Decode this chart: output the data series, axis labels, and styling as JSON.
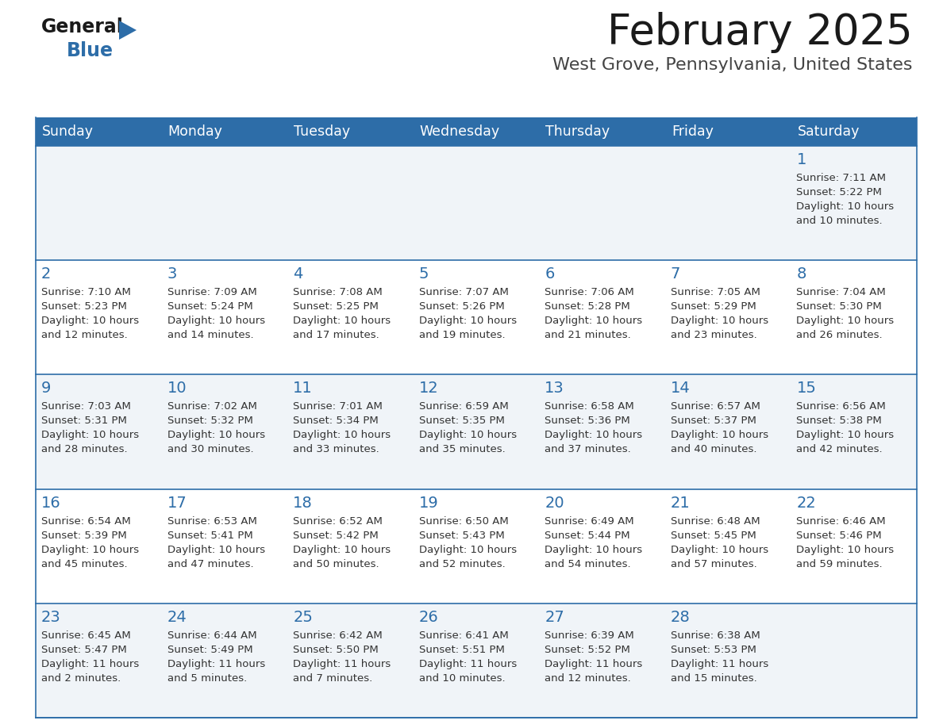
{
  "title": "February 2025",
  "subtitle": "West Grove, Pennsylvania, United States",
  "logo_text_general": "General",
  "logo_text_blue": "Blue",
  "days_of_week": [
    "Sunday",
    "Monday",
    "Tuesday",
    "Wednesday",
    "Thursday",
    "Friday",
    "Saturday"
  ],
  "header_bg": "#2D6DA8",
  "header_text": "#FFFFFF",
  "cell_bg_odd": "#F0F4F8",
  "cell_bg_even": "#FFFFFF",
  "cell_border": "#2D6DA8",
  "day_number_color": "#2D6DA8",
  "text_color": "#333333",
  "calendar_data": [
    [
      null,
      null,
      null,
      null,
      null,
      null,
      {
        "day": 1,
        "sunrise": "7:11 AM",
        "sunset": "5:22 PM",
        "daylight": "10 hours\nand 10 minutes."
      }
    ],
    [
      {
        "day": 2,
        "sunrise": "7:10 AM",
        "sunset": "5:23 PM",
        "daylight": "10 hours\nand 12 minutes."
      },
      {
        "day": 3,
        "sunrise": "7:09 AM",
        "sunset": "5:24 PM",
        "daylight": "10 hours\nand 14 minutes."
      },
      {
        "day": 4,
        "sunrise": "7:08 AM",
        "sunset": "5:25 PM",
        "daylight": "10 hours\nand 17 minutes."
      },
      {
        "day": 5,
        "sunrise": "7:07 AM",
        "sunset": "5:26 PM",
        "daylight": "10 hours\nand 19 minutes."
      },
      {
        "day": 6,
        "sunrise": "7:06 AM",
        "sunset": "5:28 PM",
        "daylight": "10 hours\nand 21 minutes."
      },
      {
        "day": 7,
        "sunrise": "7:05 AM",
        "sunset": "5:29 PM",
        "daylight": "10 hours\nand 23 minutes."
      },
      {
        "day": 8,
        "sunrise": "7:04 AM",
        "sunset": "5:30 PM",
        "daylight": "10 hours\nand 26 minutes."
      }
    ],
    [
      {
        "day": 9,
        "sunrise": "7:03 AM",
        "sunset": "5:31 PM",
        "daylight": "10 hours\nand 28 minutes."
      },
      {
        "day": 10,
        "sunrise": "7:02 AM",
        "sunset": "5:32 PM",
        "daylight": "10 hours\nand 30 minutes."
      },
      {
        "day": 11,
        "sunrise": "7:01 AM",
        "sunset": "5:34 PM",
        "daylight": "10 hours\nand 33 minutes."
      },
      {
        "day": 12,
        "sunrise": "6:59 AM",
        "sunset": "5:35 PM",
        "daylight": "10 hours\nand 35 minutes."
      },
      {
        "day": 13,
        "sunrise": "6:58 AM",
        "sunset": "5:36 PM",
        "daylight": "10 hours\nand 37 minutes."
      },
      {
        "day": 14,
        "sunrise": "6:57 AM",
        "sunset": "5:37 PM",
        "daylight": "10 hours\nand 40 minutes."
      },
      {
        "day": 15,
        "sunrise": "6:56 AM",
        "sunset": "5:38 PM",
        "daylight": "10 hours\nand 42 minutes."
      }
    ],
    [
      {
        "day": 16,
        "sunrise": "6:54 AM",
        "sunset": "5:39 PM",
        "daylight": "10 hours\nand 45 minutes."
      },
      {
        "day": 17,
        "sunrise": "6:53 AM",
        "sunset": "5:41 PM",
        "daylight": "10 hours\nand 47 minutes."
      },
      {
        "day": 18,
        "sunrise": "6:52 AM",
        "sunset": "5:42 PM",
        "daylight": "10 hours\nand 50 minutes."
      },
      {
        "day": 19,
        "sunrise": "6:50 AM",
        "sunset": "5:43 PM",
        "daylight": "10 hours\nand 52 minutes."
      },
      {
        "day": 20,
        "sunrise": "6:49 AM",
        "sunset": "5:44 PM",
        "daylight": "10 hours\nand 54 minutes."
      },
      {
        "day": 21,
        "sunrise": "6:48 AM",
        "sunset": "5:45 PM",
        "daylight": "10 hours\nand 57 minutes."
      },
      {
        "day": 22,
        "sunrise": "6:46 AM",
        "sunset": "5:46 PM",
        "daylight": "10 hours\nand 59 minutes."
      }
    ],
    [
      {
        "day": 23,
        "sunrise": "6:45 AM",
        "sunset": "5:47 PM",
        "daylight": "11 hours\nand 2 minutes."
      },
      {
        "day": 24,
        "sunrise": "6:44 AM",
        "sunset": "5:49 PM",
        "daylight": "11 hours\nand 5 minutes."
      },
      {
        "day": 25,
        "sunrise": "6:42 AM",
        "sunset": "5:50 PM",
        "daylight": "11 hours\nand 7 minutes."
      },
      {
        "day": 26,
        "sunrise": "6:41 AM",
        "sunset": "5:51 PM",
        "daylight": "11 hours\nand 10 minutes."
      },
      {
        "day": 27,
        "sunrise": "6:39 AM",
        "sunset": "5:52 PM",
        "daylight": "11 hours\nand 12 minutes."
      },
      {
        "day": 28,
        "sunrise": "6:38 AM",
        "sunset": "5:53 PM",
        "daylight": "11 hours\nand 15 minutes."
      },
      null
    ]
  ]
}
